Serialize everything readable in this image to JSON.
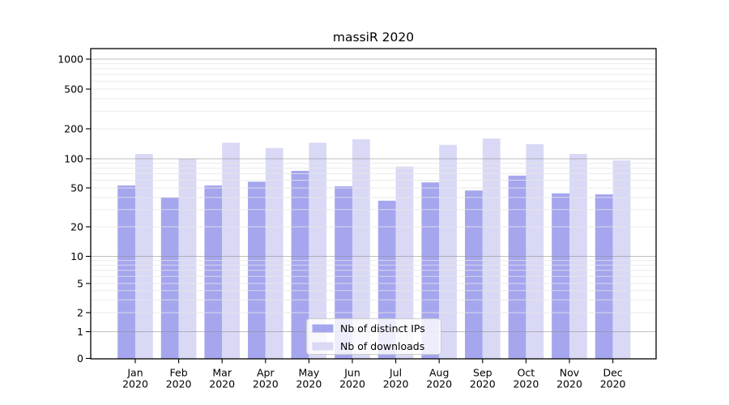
{
  "title": "massiR 2020",
  "chart_data": {
    "type": "bar",
    "title": "massiR 2020",
    "categories": [
      "Jan 2020",
      "Feb 2020",
      "Mar 2020",
      "Apr 2020",
      "May 2020",
      "Jun 2020",
      "Jul 2020",
      "Aug 2020",
      "Sep 2020",
      "Oct 2020",
      "Nov 2020",
      "Dec 2020"
    ],
    "series": [
      {
        "name": "Nb of distinct IPs",
        "color": "#a6a6ef",
        "values": [
          53,
          40,
          53,
          58,
          75,
          52,
          37,
          57,
          47,
          67,
          44,
          43
        ]
      },
      {
        "name": "Nb of downloads",
        "color": "#d9d9f6",
        "values": [
          112,
          100,
          145,
          128,
          145,
          157,
          83,
          138,
          160,
          140,
          112,
          96
        ]
      }
    ],
    "yscale": "symlog",
    "yticks": [
      0,
      1,
      2,
      5,
      10,
      20,
      50,
      100,
      200,
      500,
      1000
    ],
    "ylim": [
      0,
      1300
    ],
    "xlabel": "",
    "ylabel": "",
    "grid": "horizontal major and minor gridlines drawn above bars",
    "legend_position": "lower center"
  },
  "xlabels": [
    [
      "Jan",
      "2020"
    ],
    [
      "Feb",
      "2020"
    ],
    [
      "Mar",
      "2020"
    ],
    [
      "Apr",
      "2020"
    ],
    [
      "May",
      "2020"
    ],
    [
      "Jun",
      "2020"
    ],
    [
      "Jul",
      "2020"
    ],
    [
      "Aug",
      "2020"
    ],
    [
      "Sep",
      "2020"
    ],
    [
      "Oct",
      "2020"
    ],
    [
      "Nov",
      "2020"
    ],
    [
      "Dec",
      "2020"
    ]
  ],
  "legend": {
    "items": [
      {
        "label": "Nb of distinct IPs",
        "swatch_color": "#a6a6ef"
      },
      {
        "label": "Nb of downloads",
        "swatch_color": "#d9d9f6"
      }
    ]
  },
  "colors": {
    "background": "#ffffff",
    "ips_bar": "#a6a6ef",
    "downloads_bar": "#d9d9f6",
    "grid_major": "#8a8a8a",
    "grid_minor": "#e6e6e6",
    "spine": "#000000",
    "legend_border": "#cccccc",
    "legend_background": "#ffffff"
  }
}
